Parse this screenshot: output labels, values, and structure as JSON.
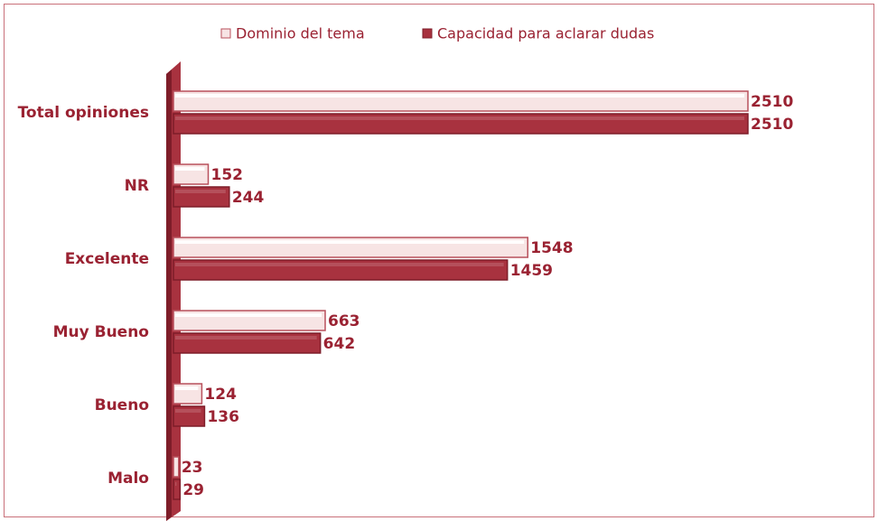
{
  "chart_data": {
    "type": "bar",
    "orientation": "horizontal",
    "categories": [
      "Total opiniones",
      "NR",
      "Excelente",
      "Muy Bueno",
      "Bueno",
      "Malo"
    ],
    "series": [
      {
        "name": "Dominio del tema",
        "color": "#f7e4e4",
        "values": [
          2510,
          152,
          1548,
          663,
          124,
          23
        ]
      },
      {
        "name": "Capacidad para aclarar dudas",
        "color": "#a8323f",
        "values": [
          2510,
          244,
          1459,
          642,
          136,
          29
        ]
      }
    ],
    "legend": "top",
    "grid": false
  }
}
